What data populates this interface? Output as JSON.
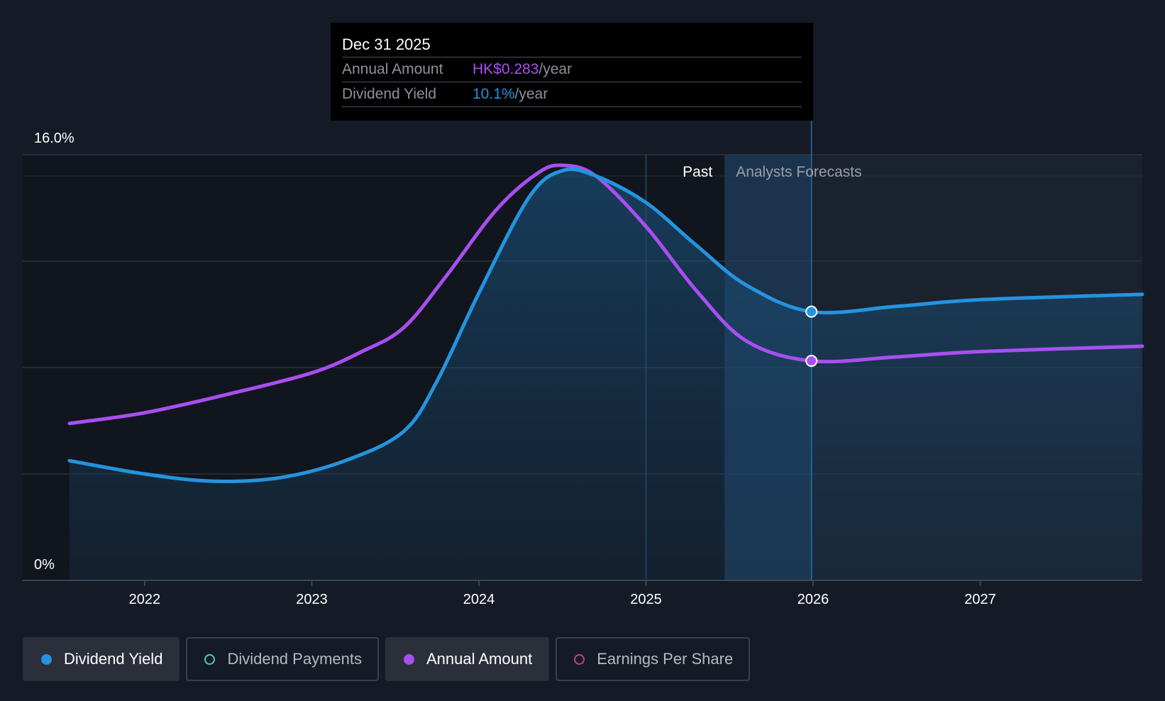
{
  "tooltip": {
    "date": "Dec 31 2025",
    "rows": [
      {
        "label": "Annual Amount",
        "value": "HK$0.283",
        "unit": "/year"
      },
      {
        "label": "Dividend Yield",
        "value": "10.1%",
        "unit": "/year"
      }
    ]
  },
  "legend": [
    {
      "label": "Dividend Yield",
      "active": true,
      "color": "#2394df",
      "style": "filled"
    },
    {
      "label": "Dividend Payments",
      "active": false,
      "color": "#4fc9bf",
      "style": "ring"
    },
    {
      "label": "Annual Amount",
      "active": true,
      "color": "#a84ff0",
      "style": "filled"
    },
    {
      "label": "Earnings Per Share",
      "active": false,
      "color": "#c4427f",
      "style": "ring"
    }
  ],
  "chart_data": {
    "type": "line",
    "ylim": [
      0,
      16
    ],
    "y_tick_labels": [
      "16.0%",
      "0%"
    ],
    "y_grid": [
      4,
      8,
      12,
      16
    ],
    "x_ticks": [
      2022,
      2023,
      2024,
      2025,
      2026,
      2027
    ],
    "xlim": [
      2021.27,
      2027.97
    ],
    "past_label": "Past",
    "forecast_label": "Analysts Forecasts",
    "forecast_start": 2025.47,
    "hover_x": 2025.99,
    "colors": {
      "yield": "#2394df",
      "amount": "#a84ff0"
    },
    "series": [
      {
        "name": "Dividend Yield",
        "unit": "%",
        "area": true,
        "points": [
          [
            2021.55,
            4.5
          ],
          [
            2022.0,
            4.0
          ],
          [
            2022.4,
            3.73
          ],
          [
            2022.8,
            3.85
          ],
          [
            2023.2,
            4.5
          ],
          [
            2023.55,
            5.6
          ],
          [
            2023.75,
            7.5
          ],
          [
            2024.0,
            10.8
          ],
          [
            2024.3,
            14.4
          ],
          [
            2024.5,
            15.4
          ],
          [
            2024.7,
            15.2
          ],
          [
            2025.0,
            14.2
          ],
          [
            2025.3,
            12.6
          ],
          [
            2025.6,
            11.1
          ],
          [
            2025.99,
            10.1
          ],
          [
            2026.5,
            10.3
          ],
          [
            2027.0,
            10.55
          ],
          [
            2027.97,
            10.75
          ]
        ]
      },
      {
        "name": "Annual Amount",
        "unit": "HK$",
        "points": [
          [
            2021.55,
            5.9
          ],
          [
            2022.0,
            6.3
          ],
          [
            2022.5,
            7.0
          ],
          [
            2023.0,
            7.8
          ],
          [
            2023.3,
            8.6
          ],
          [
            2023.55,
            9.5
          ],
          [
            2023.8,
            11.4
          ],
          [
            2024.1,
            13.9
          ],
          [
            2024.35,
            15.3
          ],
          [
            2024.5,
            15.6
          ],
          [
            2024.7,
            15.2
          ],
          [
            2025.0,
            13.3
          ],
          [
            2025.3,
            10.9
          ],
          [
            2025.6,
            9.0
          ],
          [
            2025.99,
            8.25
          ],
          [
            2026.5,
            8.4
          ],
          [
            2027.0,
            8.6
          ],
          [
            2027.97,
            8.8
          ]
        ]
      }
    ]
  }
}
